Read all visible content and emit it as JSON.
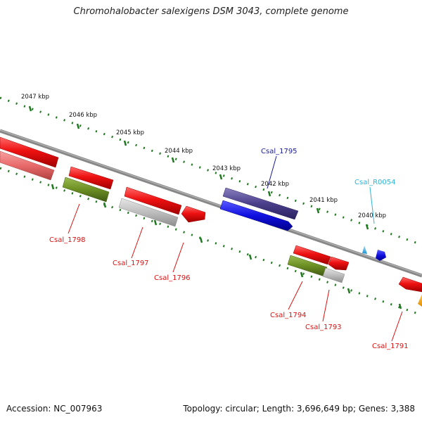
{
  "title": "Chromohalobacter salexigens DSM 3043, complete genome",
  "footer": {
    "accession": "Accession: NC_007963",
    "topology": "Topology: circular; Length: 3,696,649 bp; Genes: 3,388"
  },
  "colors": {
    "backbone": "#7a7a7a",
    "tick": "#1f7a1f",
    "cds_forward": "#e01010",
    "cds_reverse": "#1010e0",
    "gene_green": "#6b8e23",
    "gene_gray": "#b5b5b5",
    "gene_navy": "#4a3f8a",
    "rna": "#2fa8e0",
    "misc": "#f0a000"
  },
  "scale": {
    "unit": "kbp",
    "labels": [
      "2047 kbp",
      "2046 kbp",
      "2045 kbp",
      "2044 kbp",
      "2043 kbp",
      "2042 kbp",
      "2041 kbp",
      "2040 kbp"
    ]
  },
  "genes": [
    {
      "name": "Csal_1798",
      "color": "#dd1111"
    },
    {
      "name": "Csal_1797",
      "color": "#dd1111"
    },
    {
      "name": "Csal_1796",
      "color": "#dd1111"
    },
    {
      "name": "Csal_1795",
      "color": "#1a1a99"
    },
    {
      "name": "Csal_R0054",
      "color": "#2bb3d9"
    },
    {
      "name": "Csal_1794",
      "color": "#dd1111"
    },
    {
      "name": "Csal_1793",
      "color": "#dd1111"
    },
    {
      "name": "Csal_1791",
      "color": "#dd1111"
    }
  ]
}
